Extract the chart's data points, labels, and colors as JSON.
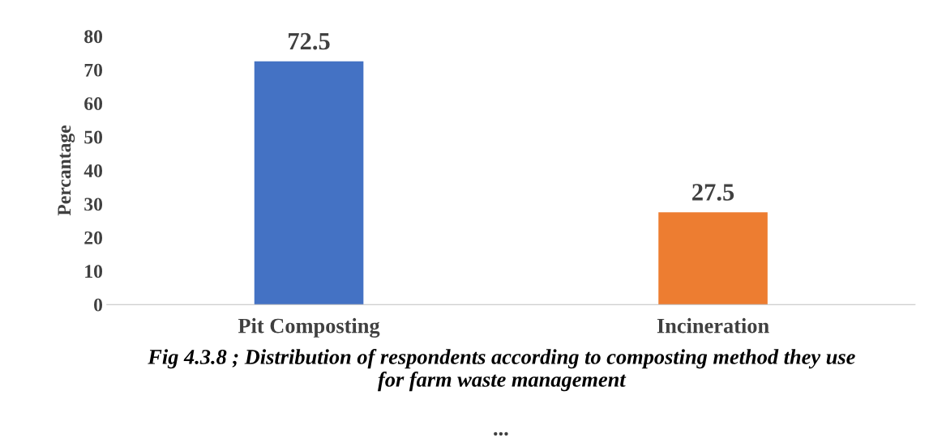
{
  "chart_data": {
    "type": "bar",
    "ylabel": "Percantage",
    "categories": [
      "Pit Composting",
      "Incineration"
    ],
    "values": [
      72.5,
      27.5
    ],
    "colors": [
      "#4472c4",
      "#ed7d31"
    ],
    "ylim": [
      0,
      80
    ],
    "yticks": [
      0,
      10,
      20,
      30,
      40,
      50,
      60,
      70,
      80
    ],
    "grid": false,
    "data_labels": true,
    "annotations": [
      "Fig 4.3.8 ; Distribution of respondents according to composting method they use\nfor farm waste management",
      "..."
    ]
  }
}
